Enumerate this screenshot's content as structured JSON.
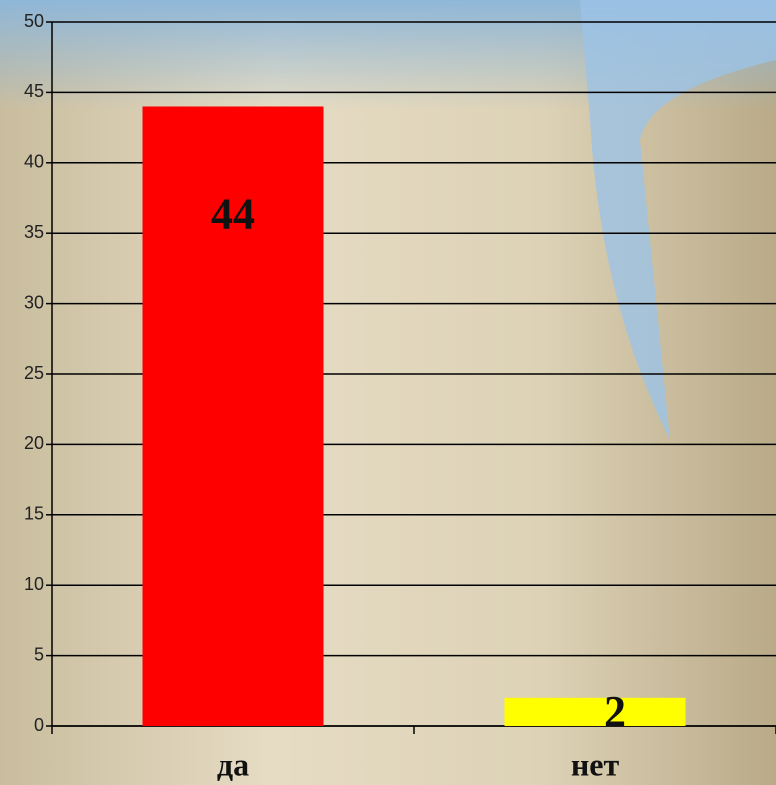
{
  "chart_data": {
    "type": "bar",
    "categories": [
      "да",
      "нет"
    ],
    "values": [
      44,
      2
    ],
    "colors": [
      "#ff0000",
      "#ffff00"
    ],
    "ylim": [
      0,
      50
    ],
    "yticks": [
      0,
      5,
      10,
      15,
      20,
      25,
      30,
      35,
      40,
      45,
      50
    ],
    "grid": true
  }
}
